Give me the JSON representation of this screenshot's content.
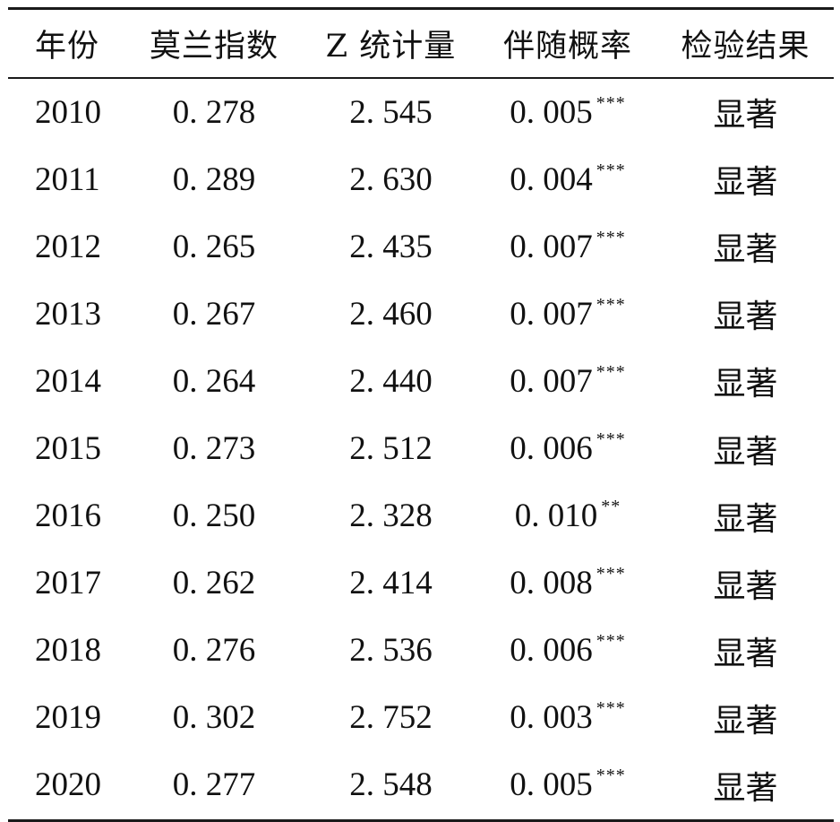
{
  "table": {
    "headers": [
      "年份",
      "莫兰指数",
      "Z 统计量",
      "伴随概率",
      "检验结果"
    ],
    "rows": [
      {
        "year": "2010",
        "moran": "0. 278",
        "z": "2. 545",
        "p": "0. 005",
        "sig": "***",
        "result": "显著"
      },
      {
        "year": "2011",
        "moran": "0. 289",
        "z": "2. 630",
        "p": "0. 004",
        "sig": "***",
        "result": "显著"
      },
      {
        "year": "2012",
        "moran": "0. 265",
        "z": "2. 435",
        "p": "0. 007",
        "sig": "***",
        "result": "显著"
      },
      {
        "year": "2013",
        "moran": "0. 267",
        "z": "2. 460",
        "p": "0. 007",
        "sig": "***",
        "result": "显著"
      },
      {
        "year": "2014",
        "moran": "0. 264",
        "z": "2. 440",
        "p": "0. 007",
        "sig": "***",
        "result": "显著"
      },
      {
        "year": "2015",
        "moran": "0. 273",
        "z": "2. 512",
        "p": "0. 006",
        "sig": "***",
        "result": "显著"
      },
      {
        "year": "2016",
        "moran": "0. 250",
        "z": "2. 328",
        "p": "0. 010",
        "sig": "**",
        "result": "显著"
      },
      {
        "year": "2017",
        "moran": "0. 262",
        "z": "2. 414",
        "p": "0. 008",
        "sig": "***",
        "result": "显著"
      },
      {
        "year": "2018",
        "moran": "0. 276",
        "z": "2. 536",
        "p": "0. 006",
        "sig": "***",
        "result": "显著"
      },
      {
        "year": "2019",
        "moran": "0. 302",
        "z": "2. 752",
        "p": "0. 003",
        "sig": "***",
        "result": "显著"
      },
      {
        "year": "2020",
        "moran": "0. 277",
        "z": "2. 548",
        "p": "0. 005",
        "sig": "***",
        "result": "显著"
      }
    ]
  }
}
